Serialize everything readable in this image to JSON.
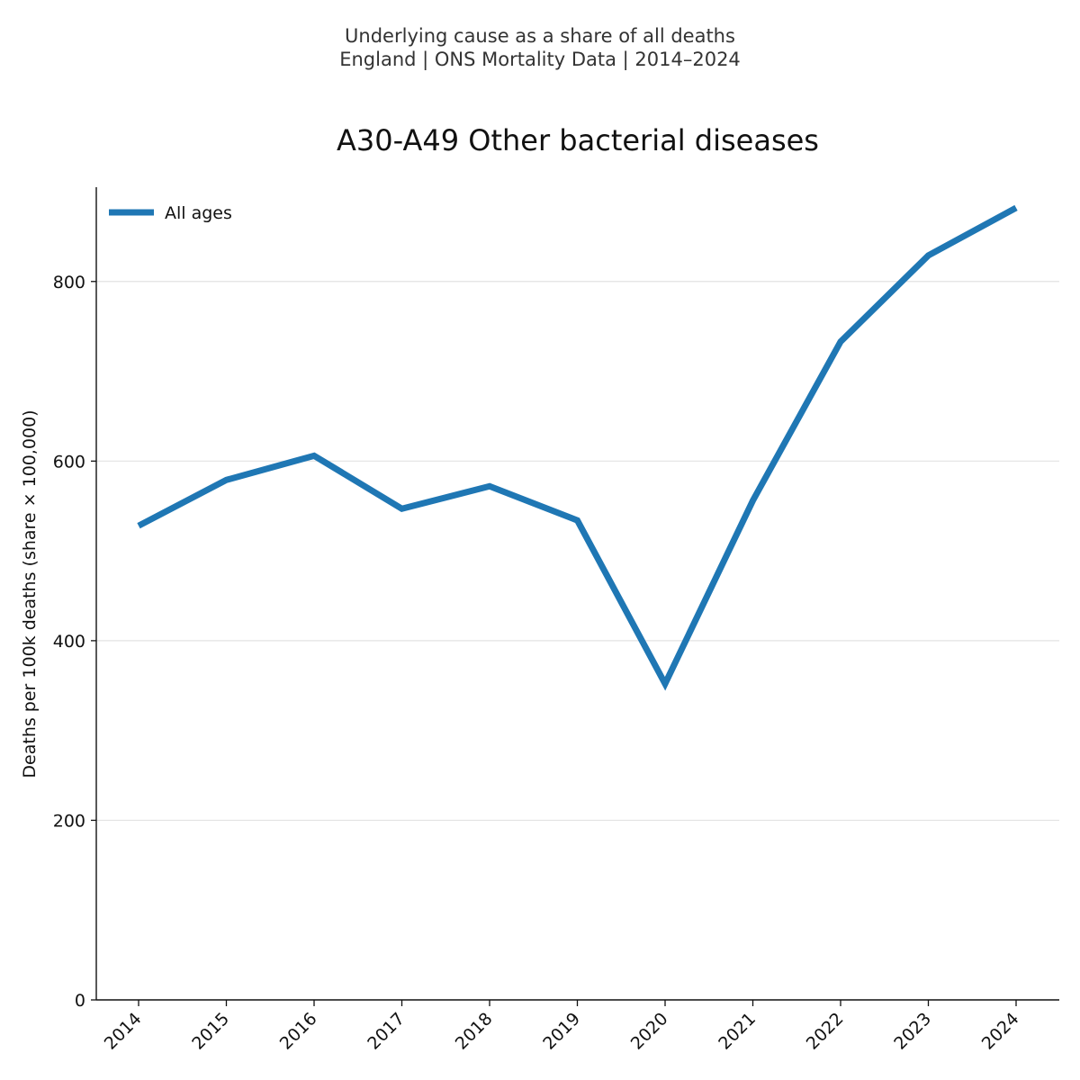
{
  "header": {
    "line1": "Underlying cause as a share of all deaths",
    "line2": "England | ONS Mortality Data | 2014–2024"
  },
  "chart_data": {
    "type": "line",
    "title": "A30-A49 Other bacterial diseases",
    "xlabel": "",
    "ylabel": "Deaths per 100k deaths (share × 100,000)",
    "categories": [
      "2014",
      "2015",
      "2016",
      "2017",
      "2018",
      "2019",
      "2020",
      "2021",
      "2022",
      "2023",
      "2024"
    ],
    "series": [
      {
        "name": "All ages",
        "color": "#1f77b4",
        "values": [
          528,
          579,
          606,
          547,
          572,
          534,
          352,
          556,
          733,
          829,
          882
        ]
      }
    ],
    "yticks": [
      0,
      200,
      400,
      600,
      800
    ],
    "ylim": [
      0,
      905
    ],
    "grid": "horizontal",
    "legend": "top-left"
  }
}
